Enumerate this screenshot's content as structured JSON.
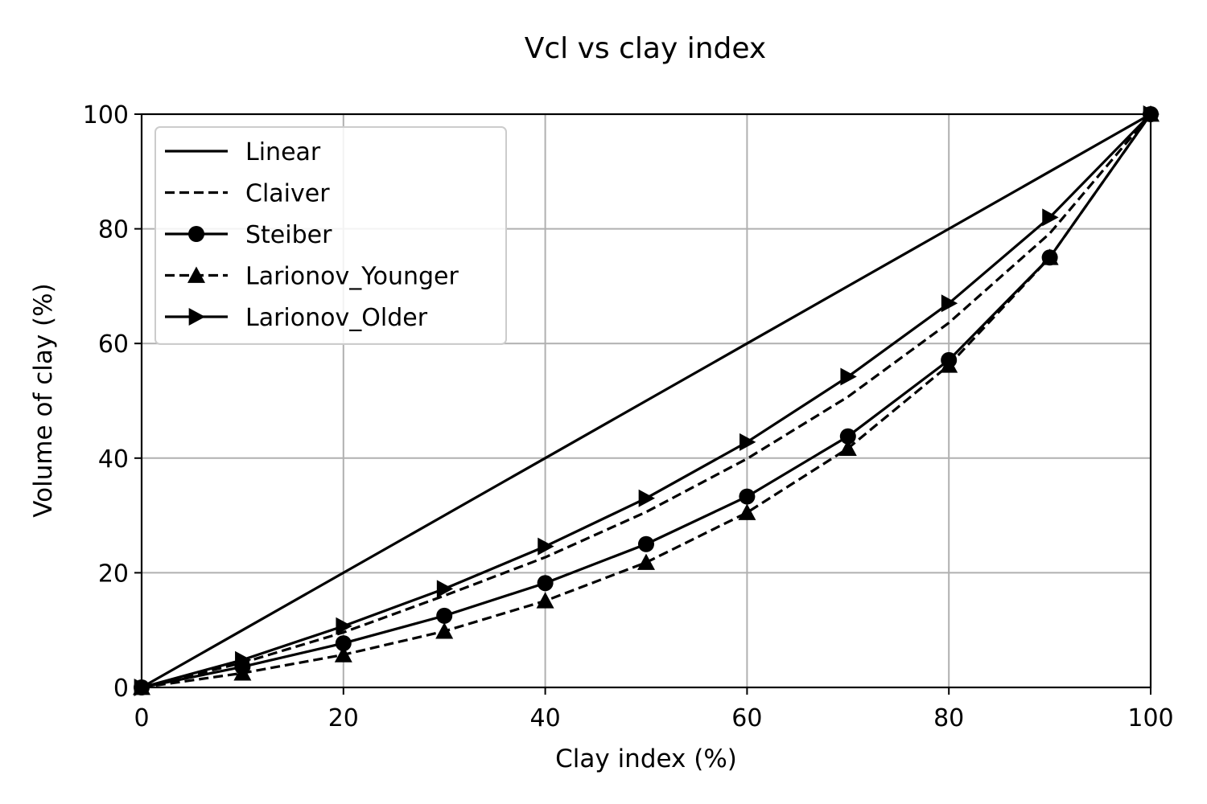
{
  "chart_data": {
    "type": "line",
    "title": "Vcl vs clay index",
    "xlabel": "Clay index (%)",
    "ylabel": "Volume of clay (%)",
    "xlim": [
      0,
      100
    ],
    "ylim": [
      0,
      100
    ],
    "xticks": [
      "0",
      "20",
      "40",
      "60",
      "80",
      "100"
    ],
    "yticks": [
      "0",
      "20",
      "40",
      "60",
      "80",
      "100"
    ],
    "grid": true,
    "legend_position": "top-left",
    "x": [
      0,
      10,
      20,
      30,
      40,
      50,
      60,
      70,
      80,
      90,
      100
    ],
    "series": [
      {
        "name": "Linear",
        "linestyle": "solid",
        "marker": "none",
        "values": [
          0,
          10,
          20,
          30,
          40,
          50,
          60,
          70,
          80,
          90,
          100
        ]
      },
      {
        "name": "Claiver",
        "linestyle": "dashed",
        "marker": "none",
        "values": [
          0,
          4.3,
          9.6,
          16.0,
          22.7,
          30.6,
          39.9,
          50.7,
          63.6,
          79.2,
          100
        ]
      },
      {
        "name": "Steiber",
        "linestyle": "solid",
        "marker": "circle",
        "values": [
          0,
          3.6,
          7.7,
          12.5,
          18.2,
          25.0,
          33.3,
          43.8,
          57.1,
          75.0,
          100
        ]
      },
      {
        "name": "Larionov_Younger",
        "linestyle": "dashed",
        "marker": "triangle-up",
        "values": [
          0,
          2.5,
          5.7,
          9.8,
          15.1,
          21.8,
          30.5,
          41.7,
          56.2,
          75.0,
          100
        ]
      },
      {
        "name": "Larionov_Older",
        "linestyle": "solid",
        "marker": "triangle-right",
        "values": [
          0,
          4.8,
          10.7,
          17.2,
          24.6,
          33.0,
          42.8,
          54.2,
          67.0,
          82.0,
          100
        ]
      }
    ]
  },
  "colors": {
    "line": "#000000",
    "grid": "#b0b0b0",
    "background": "#ffffff"
  }
}
